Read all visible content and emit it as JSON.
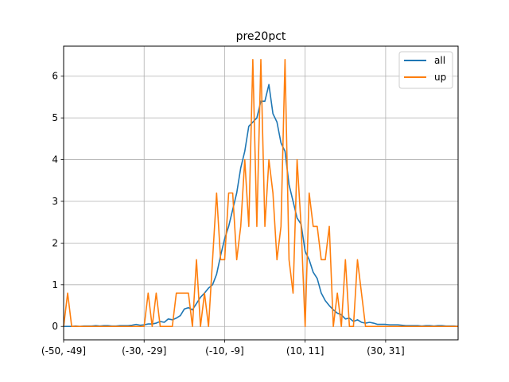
{
  "chart_data": {
    "type": "line",
    "title": "pre20pct",
    "xlabel": "",
    "ylabel": "",
    "x_range": [
      0,
      98
    ],
    "ylim": [
      -0.32,
      6.72
    ],
    "grid": true,
    "legend_placement": "top-right",
    "x_ticks": [
      {
        "index": 0,
        "label": "(-50, -49]"
      },
      {
        "index": 20,
        "label": "(-30, -29]"
      },
      {
        "index": 40,
        "label": "(-10, -9]"
      },
      {
        "index": 60,
        "label": "(10, 11]"
      },
      {
        "index": 80,
        "label": "(30, 31]"
      }
    ],
    "y_ticks": [
      0,
      1,
      2,
      3,
      4,
      5,
      6
    ],
    "series": [
      {
        "name": "all",
        "color": "#1f77b4",
        "values": [
          0,
          0,
          0,
          0.01,
          0,
          0.01,
          0.01,
          0.01,
          0.02,
          0.01,
          0.02,
          0.02,
          0.01,
          0.01,
          0.02,
          0.02,
          0.02,
          0.03,
          0.05,
          0.03,
          0.04,
          0.06,
          0.06,
          0.08,
          0.12,
          0.1,
          0.18,
          0.16,
          0.2,
          0.26,
          0.42,
          0.45,
          0.4,
          0.55,
          0.7,
          0.8,
          0.92,
          1.0,
          1.25,
          1.7,
          2.1,
          2.4,
          2.8,
          3.2,
          3.8,
          4.2,
          4.8,
          4.9,
          5.0,
          5.4,
          5.4,
          5.8,
          5.1,
          4.9,
          4.4,
          4.2,
          3.4,
          3.0,
          2.6,
          2.45,
          1.8,
          1.6,
          1.3,
          1.15,
          0.8,
          0.62,
          0.5,
          0.4,
          0.32,
          0.28,
          0.18,
          0.2,
          0.12,
          0.16,
          0.1,
          0.08,
          0.1,
          0.08,
          0.05,
          0.05,
          0.05,
          0.04,
          0.04,
          0.04,
          0.03,
          0.02,
          0.02,
          0.02,
          0.02,
          0.01,
          0.02,
          0.02,
          0.01,
          0.02,
          0.02,
          0.01,
          0.01,
          0.01,
          0.0
        ]
      },
      {
        "name": "up",
        "color": "#ff7f0e",
        "values": [
          0,
          0.8,
          0,
          0,
          0,
          0,
          0,
          0,
          0,
          0,
          0,
          0,
          0,
          0,
          0,
          0,
          0,
          0,
          0,
          0,
          0,
          0.8,
          0,
          0.8,
          0,
          0,
          0,
          0,
          0.8,
          0.8,
          0.8,
          0.8,
          0,
          1.6,
          0,
          0.8,
          0,
          1.6,
          3.2,
          1.6,
          1.6,
          3.2,
          3.2,
          1.6,
          2.4,
          4.0,
          2.4,
          6.4,
          2.4,
          6.4,
          2.4,
          4.0,
          3.2,
          1.6,
          2.4,
          6.4,
          1.6,
          0.8,
          4.0,
          2.4,
          0,
          3.2,
          2.4,
          2.4,
          1.6,
          1.6,
          2.4,
          0,
          0.8,
          0,
          1.6,
          0,
          0,
          1.6,
          0.8,
          0,
          0,
          0,
          0,
          0,
          0,
          0,
          0,
          0,
          0,
          0,
          0,
          0,
          0,
          0,
          0,
          0,
          0,
          0,
          0,
          0,
          0,
          0,
          0
        ]
      }
    ]
  }
}
